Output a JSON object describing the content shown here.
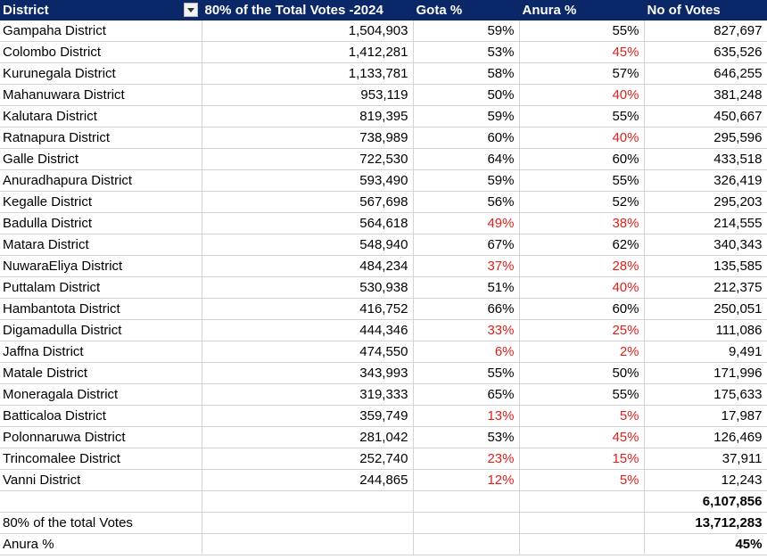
{
  "headers": [
    "District",
    "80% of the Total Votes -2024",
    "Gota %",
    "Anura %",
    "No of Votes"
  ],
  "colors": {
    "header_bg": "#0a2768",
    "header_text": "#ffffff",
    "red_text": "#e0201b"
  },
  "rows": [
    {
      "district": "Gampaha District",
      "votes80": "1,504,903",
      "gota": "59%",
      "anura": "55%",
      "votes": "827,697",
      "gota_red": false,
      "anura_red": false
    },
    {
      "district": "Colombo District",
      "votes80": "1,412,281",
      "gota": "53%",
      "anura": "45%",
      "votes": "635,526",
      "gota_red": false,
      "anura_red": true
    },
    {
      "district": "Kurunegala District",
      "votes80": "1,133,781",
      "gota": "58%",
      "anura": "57%",
      "votes": "646,255",
      "gota_red": false,
      "anura_red": false
    },
    {
      "district": "Mahanuwara District",
      "votes80": "953,119",
      "gota": "50%",
      "anura": "40%",
      "votes": "381,248",
      "gota_red": false,
      "anura_red": true
    },
    {
      "district": "Kalutara District",
      "votes80": "819,395",
      "gota": "59%",
      "anura": "55%",
      "votes": "450,667",
      "gota_red": false,
      "anura_red": false
    },
    {
      "district": "Ratnapura District",
      "votes80": "738,989",
      "gota": "60%",
      "anura": "40%",
      "votes": "295,596",
      "gota_red": false,
      "anura_red": true
    },
    {
      "district": "Galle District",
      "votes80": "722,530",
      "gota": "64%",
      "anura": "60%",
      "votes": "433,518",
      "gota_red": false,
      "anura_red": false
    },
    {
      "district": "Anuradhapura District",
      "votes80": "593,490",
      "gota": "59%",
      "anura": "55%",
      "votes": "326,419",
      "gota_red": false,
      "anura_red": false
    },
    {
      "district": "Kegalle District",
      "votes80": "567,698",
      "gota": "56%",
      "anura": "52%",
      "votes": "295,203",
      "gota_red": false,
      "anura_red": false
    },
    {
      "district": "Badulla District",
      "votes80": "564,618",
      "gota": "49%",
      "anura": "38%",
      "votes": "214,555",
      "gota_red": true,
      "anura_red": true
    },
    {
      "district": "Matara District",
      "votes80": "548,940",
      "gota": "67%",
      "anura": "62%",
      "votes": "340,343",
      "gota_red": false,
      "anura_red": false
    },
    {
      "district": "NuwaraEliya District",
      "votes80": "484,234",
      "gota": "37%",
      "anura": "28%",
      "votes": "135,585",
      "gota_red": true,
      "anura_red": true
    },
    {
      "district": "Puttalam District",
      "votes80": "530,938",
      "gota": "51%",
      "anura": "40%",
      "votes": "212,375",
      "gota_red": false,
      "anura_red": true
    },
    {
      "district": "Hambantota District",
      "votes80": "416,752",
      "gota": "66%",
      "anura": "60%",
      "votes": "250,051",
      "gota_red": false,
      "anura_red": false
    },
    {
      "district": "Digamadulla District",
      "votes80": "444,346",
      "gota": "33%",
      "anura": "25%",
      "votes": "111,086",
      "gota_red": true,
      "anura_red": true
    },
    {
      "district": "Jaffna District",
      "votes80": "474,550",
      "gota": "6%",
      "anura": "2%",
      "votes": "9,491",
      "gota_red": true,
      "anura_red": true
    },
    {
      "district": "Matale District",
      "votes80": "343,993",
      "gota": "55%",
      "anura": "50%",
      "votes": "171,996",
      "gota_red": false,
      "anura_red": false
    },
    {
      "district": "Moneragala District",
      "votes80": "319,333",
      "gota": "65%",
      "anura": "55%",
      "votes": "175,633",
      "gota_red": false,
      "anura_red": false
    },
    {
      "district": "Batticaloa District",
      "votes80": "359,749",
      "gota": "13%",
      "anura": "5%",
      "votes": "17,987",
      "gota_red": true,
      "anura_red": true
    },
    {
      "district": "Polonnaruwa District",
      "votes80": "281,042",
      "gota": "53%",
      "anura": "45%",
      "votes": "126,469",
      "gota_red": false,
      "anura_red": true
    },
    {
      "district": "Trincomalee District",
      "votes80": "252,740",
      "gota": "23%",
      "anura": "15%",
      "votes": "37,911",
      "gota_red": true,
      "anura_red": true
    },
    {
      "district": "Vanni District",
      "votes80": "244,865",
      "gota": "12%",
      "anura": "5%",
      "votes": "12,243",
      "gota_red": true,
      "anura_red": true
    }
  ],
  "summary": {
    "total_votes": "6,107,856",
    "label_80pct": "80% of the total Votes",
    "value_80pct": "13,712,283",
    "label_anura": "Anura %",
    "value_anura": "45%"
  }
}
